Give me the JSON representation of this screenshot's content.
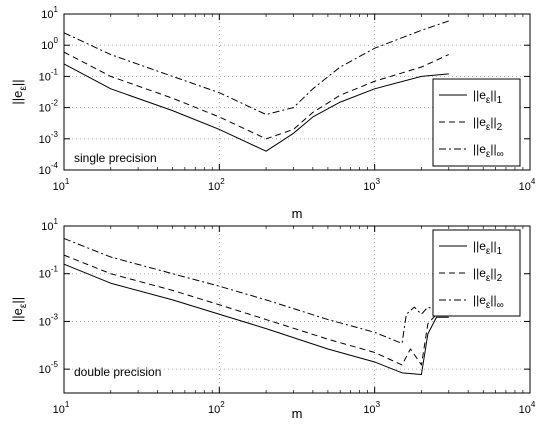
{
  "colors": {
    "background": "#ffffff",
    "axes": "#000000",
    "grid": "#9a9a9a",
    "lines": "#000000"
  },
  "chart_data": [
    {
      "type": "line",
      "title": "",
      "xlabel": "m",
      "ylabel": "||e_ε||",
      "annotation": "single precision",
      "xscale": "log",
      "yscale": "log",
      "xlim": [
        10,
        10000
      ],
      "ylim": [
        0.0001,
        10
      ],
      "x_ticks": [
        10,
        100,
        1000,
        10000
      ],
      "y_ticks": [
        0.0001,
        0.001,
        0.01,
        0.1,
        1,
        10
      ],
      "grid": true,
      "legend_position": "right",
      "series": [
        {
          "name": "||e_ε||_1",
          "dash": "solid",
          "x": [
            10,
            20,
            50,
            100,
            200,
            300,
            400,
            600,
            1000,
            2000,
            3000
          ],
          "y": [
            0.25,
            0.04,
            0.008,
            0.002,
            0.0004,
            0.0015,
            0.005,
            0.015,
            0.04,
            0.1,
            0.12
          ]
        },
        {
          "name": "||e_ε||_2",
          "dash": "dashed",
          "x": [
            10,
            20,
            50,
            100,
            200,
            300,
            400,
            600,
            1000,
            2000,
            3000
          ],
          "y": [
            0.6,
            0.1,
            0.02,
            0.005,
            0.001,
            0.002,
            0.007,
            0.025,
            0.07,
            0.2,
            0.5
          ]
        },
        {
          "name": "||e_ε||_∞",
          "dash": "dashdot",
          "x": [
            10,
            20,
            50,
            100,
            200,
            300,
            400,
            600,
            1000,
            2000,
            3000
          ],
          "y": [
            2.5,
            0.5,
            0.1,
            0.03,
            0.006,
            0.01,
            0.04,
            0.2,
            0.8,
            3,
            6
          ]
        }
      ]
    },
    {
      "type": "line",
      "title": "",
      "xlabel": "m",
      "ylabel": "||e_ε||",
      "annotation": "double precision",
      "xscale": "log",
      "yscale": "log",
      "xlim": [
        10,
        10000
      ],
      "ylim": [
        1e-06,
        10
      ],
      "x_ticks": [
        10,
        100,
        1000,
        10000
      ],
      "y_ticks": [
        1e-05,
        0.001,
        0.1,
        10
      ],
      "grid": true,
      "legend_position": "top-right",
      "series": [
        {
          "name": "||e_ε||_1",
          "dash": "solid",
          "x": [
            10,
            20,
            50,
            100,
            200,
            500,
            1000,
            1500,
            2000,
            2200,
            2500,
            3000
          ],
          "y": [
            0.25,
            0.04,
            0.008,
            0.002,
            0.0005,
            7e-05,
            2e-05,
            7e-06,
            6e-06,
            0.0003,
            0.0015,
            0.0015
          ]
        },
        {
          "name": "||e_ε||_2",
          "dash": "dashed",
          "x": [
            10,
            20,
            50,
            100,
            200,
            500,
            1000,
            1500,
            1700,
            2000,
            2200,
            2500,
            3000
          ],
          "y": [
            0.6,
            0.1,
            0.02,
            0.005,
            0.0012,
            0.00018,
            5e-05,
            1.5e-05,
            7e-05,
            1.5e-05,
            0.0008,
            0.002,
            0.002
          ]
        },
        {
          "name": "||e_ε||_∞",
          "dash": "dashdot",
          "x": [
            10,
            20,
            50,
            100,
            200,
            500,
            1000,
            1500,
            1600,
            1800,
            2000,
            2200,
            2500,
            3000
          ],
          "y": [
            3,
            0.5,
            0.1,
            0.03,
            0.008,
            0.0012,
            0.00035,
            0.00012,
            0.002,
            0.004,
            0.002,
            0.004,
            0.003,
            0.003
          ]
        }
      ]
    }
  ]
}
